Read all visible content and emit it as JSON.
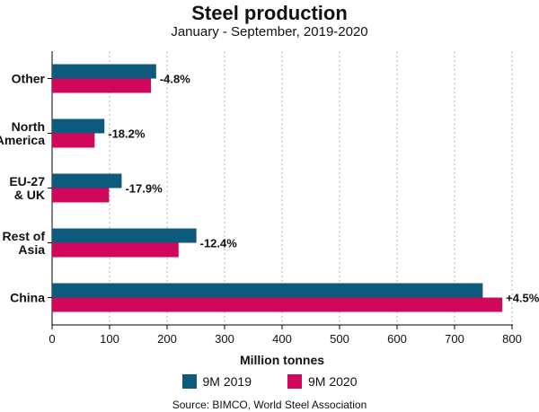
{
  "colors": {
    "s2019": "#0e5a7d",
    "s2020": "#d0075a",
    "grid": "#b5b5b5",
    "axis": "#000000"
  },
  "chart_data": {
    "type": "bar",
    "orientation": "horizontal",
    "title": "Steel production",
    "subtitle": "January - September, 2019-2020",
    "xlabel": "Million tonnes",
    "ylabel": "",
    "xlim": [
      0,
      800
    ],
    "xticks": [
      0,
      100,
      200,
      300,
      400,
      500,
      600,
      700,
      800
    ],
    "grid": "vertical dashed",
    "legend_position": "bottom-center",
    "categories": [
      [
        "Other"
      ],
      [
        "North",
        "America"
      ],
      [
        "EU-27",
        "& UK"
      ],
      [
        "Rest of",
        "Asia"
      ],
      [
        "China"
      ]
    ],
    "series": [
      {
        "name": "9M 2019",
        "values": [
          181,
          91,
          121,
          251,
          749
        ]
      },
      {
        "name": "9M 2020",
        "values": [
          172,
          74,
          99,
          220,
          783
        ]
      }
    ],
    "annotations": [
      "-4.8%",
      "-18.2%",
      "-17.9%",
      "-12.4%",
      "+4.5%"
    ]
  },
  "source": "Source: BIMCO, World Steel Association"
}
